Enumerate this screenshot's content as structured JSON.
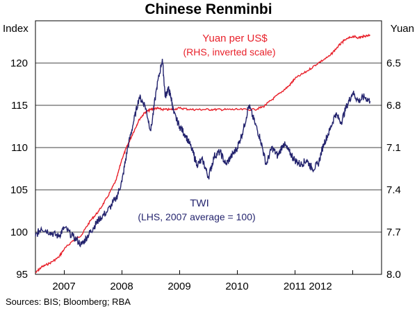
{
  "chart_data": {
    "type": "line",
    "title": "Chinese Renminbi",
    "left_axis": {
      "label": "Index",
      "range": [
        95,
        125
      ],
      "ticks": [
        95,
        100,
        105,
        110,
        115,
        120
      ]
    },
    "right_axis": {
      "label": "Yuan",
      "range": [
        8.0,
        6.2
      ],
      "inverted": true,
      "ticks": [
        8.0,
        7.7,
        7.4,
        7.1,
        6.8,
        6.5
      ]
    },
    "x_axis": {
      "range": [
        2006.5,
        2012.5
      ],
      "tick_labels": [
        "2007",
        "2008",
        "2009",
        "2010",
        "2011",
        "2012"
      ]
    },
    "grid": true,
    "source": "Sources: BIS; Bloomberg; RBA",
    "series": [
      {
        "name": "Yuan per US$",
        "annotation": "(RHS, inverted scale)",
        "axis": "right",
        "color": "#e8202a",
        "x": [
          2006.5,
          2006.6,
          2006.75,
          2006.9,
          2007.0,
          2007.15,
          2007.3,
          2007.45,
          2007.6,
          2007.75,
          2007.9,
          2008.0,
          2008.1,
          2008.2,
          2008.3,
          2008.4,
          2008.5,
          2008.6,
          2008.7,
          2008.85,
          2009.0,
          2009.2,
          2009.4,
          2009.6,
          2009.8,
          2010.0,
          2010.3,
          2010.45,
          2010.6,
          2010.75,
          2010.9,
          2011.0,
          2011.2,
          2011.4,
          2011.6,
          2011.75,
          2011.85,
          2012.0,
          2012.1,
          2012.2,
          2012.3
        ],
        "y": [
          7.99,
          7.95,
          7.92,
          7.88,
          7.82,
          7.76,
          7.72,
          7.62,
          7.55,
          7.45,
          7.33,
          7.18,
          7.08,
          6.99,
          6.9,
          6.85,
          6.83,
          6.82,
          6.83,
          6.83,
          6.82,
          6.83,
          6.83,
          6.83,
          6.83,
          6.83,
          6.83,
          6.81,
          6.76,
          6.71,
          6.66,
          6.61,
          6.56,
          6.5,
          6.45,
          6.38,
          6.34,
          6.31,
          6.32,
          6.31,
          6.3
        ]
      },
      {
        "name": "TWI",
        "annotation": "(LHS, 2007 average = 100)",
        "axis": "left",
        "color": "#24246e",
        "x": [
          2006.5,
          2006.6,
          2006.75,
          2006.9,
          2007.0,
          2007.15,
          2007.3,
          2007.4,
          2007.5,
          2007.6,
          2007.75,
          2007.9,
          2008.0,
          2008.1,
          2008.2,
          2008.3,
          2008.4,
          2008.5,
          2008.6,
          2008.7,
          2008.75,
          2008.8,
          2008.85,
          2008.9,
          2009.0,
          2009.1,
          2009.2,
          2009.3,
          2009.4,
          2009.5,
          2009.6,
          2009.7,
          2009.8,
          2009.9,
          2010.0,
          2010.1,
          2010.2,
          2010.3,
          2010.4,
          2010.5,
          2010.6,
          2010.7,
          2010.8,
          2010.9,
          2011.0,
          2011.1,
          2011.2,
          2011.3,
          2011.4,
          2011.5,
          2011.6,
          2011.7,
          2011.8,
          2011.9,
          2012.0,
          2012.1,
          2012.2,
          2012.3
        ],
        "y": [
          99.5,
          100.5,
          100.0,
          99.5,
          100.5,
          99.5,
          98.5,
          99.5,
          100.5,
          101.5,
          102.5,
          104.0,
          106.0,
          110.0,
          113.0,
          116.0,
          115.0,
          112.0,
          117.0,
          120.5,
          116.0,
          117.0,
          116.0,
          114.0,
          112.5,
          111.5,
          110.0,
          108.0,
          108.5,
          106.5,
          109.0,
          109.5,
          108.0,
          109.0,
          110.0,
          112.0,
          115.0,
          113.0,
          111.0,
          108.0,
          110.0,
          109.0,
          110.5,
          109.5,
          108.5,
          108.0,
          108.5,
          107.5,
          108.0,
          110.5,
          112.0,
          114.0,
          113.0,
          115.0,
          116.5,
          115.5,
          116.0,
          115.5
        ]
      }
    ]
  }
}
